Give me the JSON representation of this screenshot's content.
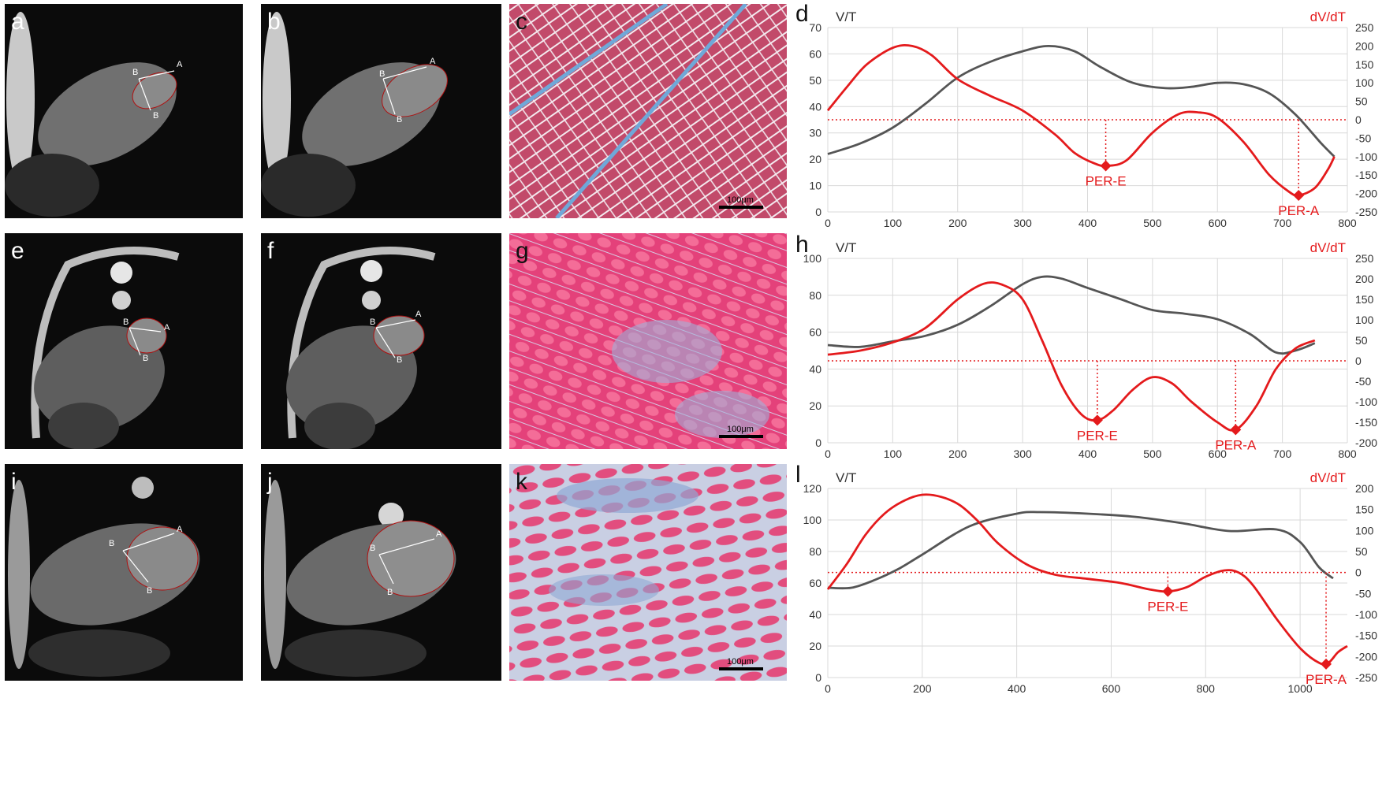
{
  "panels": {
    "mri": [
      {
        "letter": "a",
        "labels": [
          "A",
          "B",
          "B"
        ]
      },
      {
        "letter": "b",
        "labels": [
          "A",
          "B",
          "B"
        ]
      },
      {
        "letter": "e",
        "labels": [
          "A",
          "B",
          "B"
        ]
      },
      {
        "letter": "f",
        "labels": [
          "A",
          "B",
          "B"
        ]
      },
      {
        "letter": "i",
        "labels": [
          "A",
          "B",
          "B"
        ]
      },
      {
        "letter": "j",
        "labels": [
          "A",
          "B",
          "B"
        ]
      }
    ],
    "histology": [
      {
        "letter": "c",
        "scale_bar": "100μm"
      },
      {
        "letter": "g",
        "scale_bar": "100μm"
      },
      {
        "letter": "k",
        "scale_bar": "100μm"
      }
    ]
  },
  "colors": {
    "vt_curve": "#555555",
    "dvdt_curve": "#e41a1c",
    "grid": "#d9d9d9"
  },
  "chart_data": [
    {
      "panel": "d",
      "type": "line",
      "left_axis_label": "V/T",
      "right_axis_label": "dV/dT",
      "xlim": [
        0,
        800
      ],
      "xticks": [
        0,
        100,
        200,
        300,
        400,
        500,
        600,
        700,
        800
      ],
      "ylim_left": [
        0,
        70
      ],
      "yticks_left": [
        0,
        10,
        20,
        30,
        40,
        50,
        60,
        70
      ],
      "ylim_right": [
        -250,
        250
      ],
      "yticks_right": [
        250,
        200,
        150,
        100,
        50,
        0,
        -50,
        -100,
        -150,
        -200,
        -250
      ],
      "series": [
        {
          "axis": "left",
          "x": [
            0,
            50,
            100,
            150,
            200,
            250,
            300,
            340,
            380,
            420,
            470,
            520,
            560,
            600,
            640,
            680,
            720,
            760,
            780
          ],
          "y": [
            22,
            26,
            32,
            41,
            51,
            57,
            61,
            63,
            61,
            55,
            49,
            47,
            47.5,
            49,
            48.5,
            45,
            37,
            26,
            21
          ]
        },
        {
          "axis": "right",
          "x": [
            0,
            30,
            60,
            100,
            130,
            160,
            200,
            250,
            300,
            350,
            380,
            410,
            430,
            460,
            500,
            540,
            570,
            600,
            640,
            680,
            710,
            725,
            750,
            770,
            780
          ],
          "y": [
            25,
            90,
            150,
            195,
            200,
            175,
            110,
            65,
            25,
            -40,
            -90,
            -118,
            -125,
            -110,
            -35,
            15,
            20,
            5,
            -60,
            -150,
            -195,
            -205,
            -185,
            -135,
            -100
          ]
        }
      ],
      "annotations": [
        {
          "label": "PER-E",
          "x": 428,
          "y": -125
        },
        {
          "label": "PER-A",
          "x": 725,
          "y": -205
        }
      ]
    },
    {
      "panel": "h",
      "type": "line",
      "left_axis_label": "V/T",
      "right_axis_label": "dV/dT",
      "xlim": [
        0,
        800
      ],
      "xticks": [
        0,
        100,
        200,
        300,
        400,
        500,
        600,
        700,
        800
      ],
      "ylim_left": [
        0,
        100
      ],
      "yticks_left": [
        0,
        20,
        40,
        60,
        80,
        100
      ],
      "ylim_right": [
        -200,
        250
      ],
      "yticks_right": [
        250,
        200,
        150,
        100,
        50,
        0,
        -50,
        -100,
        -150,
        -200
      ],
      "series": [
        {
          "axis": "left",
          "x": [
            0,
            50,
            100,
            150,
            200,
            250,
            300,
            330,
            360,
            400,
            450,
            500,
            550,
            600,
            650,
            690,
            720,
            750
          ],
          "y": [
            53,
            52,
            55,
            58,
            64,
            74,
            86,
            90,
            89,
            84,
            78,
            72,
            70,
            67,
            59,
            49,
            50,
            54
          ],
          "y_right_equiv": null
        },
        {
          "axis": "right",
          "x": [
            0,
            50,
            100,
            150,
            200,
            240,
            270,
            300,
            330,
            360,
            390,
            415,
            440,
            470,
            500,
            530,
            560,
            600,
            628,
            660,
            690,
            720,
            750
          ],
          "y": [
            15,
            25,
            45,
            80,
            150,
            188,
            185,
            150,
            50,
            -60,
            -130,
            -145,
            -120,
            -70,
            -40,
            -55,
            -100,
            -150,
            -168,
            -110,
            -20,
            30,
            50
          ]
        }
      ],
      "annotations": [
        {
          "label": "PER-E",
          "x": 415,
          "y": -145
        },
        {
          "label": "PER-A",
          "x": 628,
          "y": -168
        }
      ]
    },
    {
      "panel": "l",
      "type": "line",
      "left_axis_label": "V/T",
      "right_axis_label": "dV/dT",
      "xlim": [
        0,
        1100
      ],
      "xticks": [
        0,
        200,
        400,
        600,
        800,
        1000
      ],
      "ylim_left": [
        0,
        120
      ],
      "yticks_left": [
        0,
        20,
        40,
        60,
        80,
        100,
        120
      ],
      "ylim_right": [
        -250,
        200
      ],
      "yticks_right": [
        200,
        150,
        100,
        50,
        0,
        -50,
        -100,
        -150,
        -200,
        -250
      ],
      "series": [
        {
          "axis": "left",
          "x": [
            0,
            50,
            100,
            150,
            200,
            300,
            400,
            450,
            550,
            650,
            750,
            850,
            950,
            1000,
            1040,
            1070
          ],
          "y": [
            57,
            57,
            62,
            69,
            78,
            96,
            104,
            105,
            104,
            102,
            98,
            93,
            94,
            86,
            70,
            63
          ],
          "y_right_equiv": null
        },
        {
          "axis": "right",
          "x": [
            0,
            40,
            80,
            120,
            160,
            200,
            240,
            280,
            320,
            360,
            420,
            480,
            550,
            620,
            680,
            720,
            760,
            800,
            840,
            870,
            900,
            950,
            1000,
            1040,
            1060,
            1080,
            1100
          ],
          "y": [
            -40,
            20,
            90,
            140,
            170,
            185,
            180,
            160,
            120,
            70,
            20,
            -5,
            -15,
            -25,
            -40,
            -45,
            -35,
            -10,
            5,
            0,
            -30,
            -110,
            -180,
            -215,
            -215,
            -190,
            -175
          ]
        }
      ],
      "annotations": [
        {
          "label": "PER-E",
          "x": 720,
          "y": -45
        },
        {
          "label": "PER-A",
          "x": 1055,
          "y": -218
        }
      ]
    }
  ]
}
